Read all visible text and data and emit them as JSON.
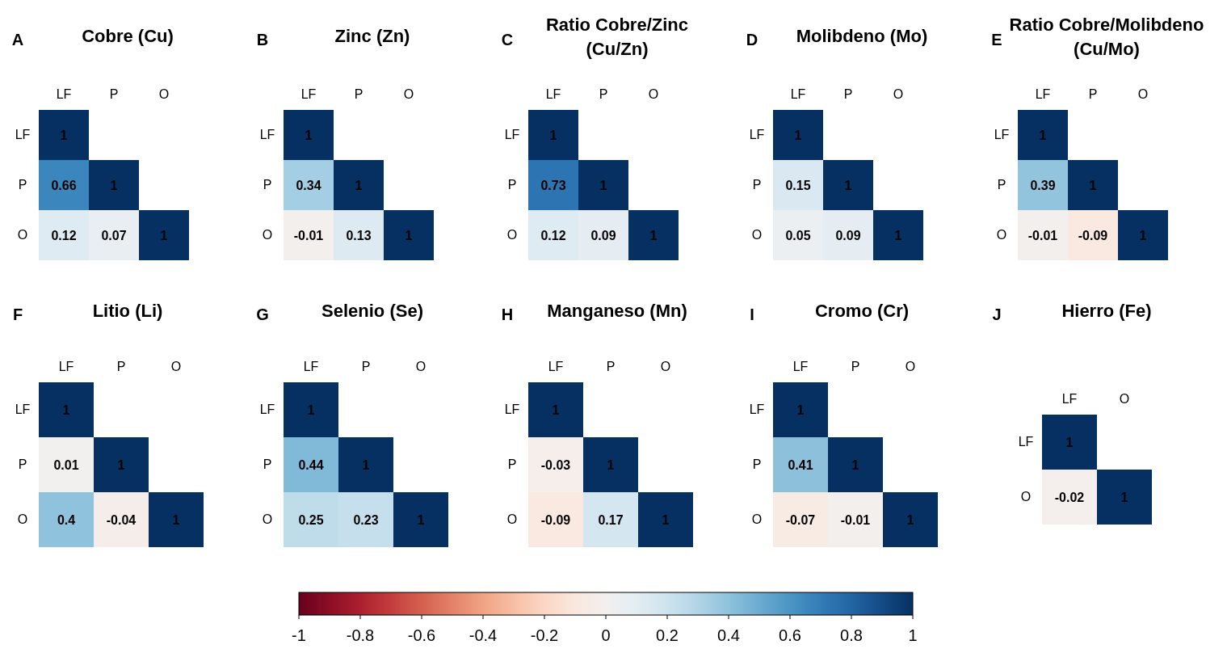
{
  "chart_data": [
    {
      "type": "heatmap",
      "title": "Cobre (Cu)",
      "annotations": [
        "A"
      ],
      "categories": [
        "LF",
        "P",
        "O"
      ],
      "y_categories": [
        "LF",
        "P",
        "O"
      ],
      "cells": [
        [
          1,
          null,
          null
        ],
        [
          0.66,
          1,
          null
        ],
        [
          0.12,
          0.07,
          1
        ]
      ],
      "clim": [
        -1,
        1
      ],
      "cticks": [
        -1,
        -0.8,
        -0.6,
        -0.4,
        -0.2,
        0,
        0.2,
        0.4,
        0.6,
        0.8,
        1
      ],
      "data_labels": true
    },
    {
      "type": "heatmap",
      "title": "Zinc (Zn)",
      "annotations": [
        "B"
      ],
      "categories": [
        "LF",
        "P",
        "O"
      ],
      "y_categories": [
        "LF",
        "P",
        "O"
      ],
      "cells": [
        [
          1,
          null,
          null
        ],
        [
          0.34,
          1,
          null
        ],
        [
          -0.01,
          0.13,
          1
        ]
      ],
      "data_labels": true
    },
    {
      "type": "heatmap",
      "title": "Ratio Cobre/Zinc (Cu/Zn)",
      "annotations": [
        "C"
      ],
      "categories": [
        "LF",
        "P",
        "O"
      ],
      "y_categories": [
        "LF",
        "P",
        "O"
      ],
      "cells": [
        [
          1,
          null,
          null
        ],
        [
          0.73,
          1,
          null
        ],
        [
          0.12,
          0.09,
          1
        ]
      ],
      "data_labels": true
    },
    {
      "type": "heatmap",
      "title": "Molibdeno (Mo)",
      "annotations": [
        "D"
      ],
      "categories": [
        "LF",
        "P",
        "O"
      ],
      "y_categories": [
        "LF",
        "P",
        "O"
      ],
      "cells": [
        [
          1,
          null,
          null
        ],
        [
          0.15,
          1,
          null
        ],
        [
          0.05,
          0.09,
          1
        ]
      ],
      "data_labels": true
    },
    {
      "type": "heatmap",
      "title": "Ratio Cobre/Molibdeno (Cu/Mo)",
      "annotations": [
        "E"
      ],
      "categories": [
        "LF",
        "P",
        "O"
      ],
      "y_categories": [
        "LF",
        "P",
        "O"
      ],
      "cells": [
        [
          1,
          null,
          null
        ],
        [
          0.39,
          1,
          null
        ],
        [
          -0.01,
          -0.09,
          1
        ]
      ],
      "data_labels": true
    },
    {
      "type": "heatmap",
      "title": "Litio (Li)",
      "annotations": [
        "F"
      ],
      "categories": [
        "LF",
        "P",
        "O"
      ],
      "y_categories": [
        "LF",
        "P",
        "O"
      ],
      "cells": [
        [
          1,
          null,
          null
        ],
        [
          0.01,
          1,
          null
        ],
        [
          0.4,
          -0.04,
          1
        ]
      ],
      "data_labels": true
    },
    {
      "type": "heatmap",
      "title": "Selenio (Se)",
      "annotations": [
        "G"
      ],
      "categories": [
        "LF",
        "P",
        "O"
      ],
      "y_categories": [
        "LF",
        "P",
        "O"
      ],
      "cells": [
        [
          1,
          null,
          null
        ],
        [
          0.44,
          1,
          null
        ],
        [
          0.25,
          0.23,
          1
        ]
      ],
      "data_labels": true
    },
    {
      "type": "heatmap",
      "title": "Manganeso (Mn)",
      "annotations": [
        "H"
      ],
      "categories": [
        "LF",
        "P",
        "O"
      ],
      "y_categories": [
        "LF",
        "P",
        "O"
      ],
      "cells": [
        [
          1,
          null,
          null
        ],
        [
          -0.03,
          1,
          null
        ],
        [
          -0.09,
          0.17,
          1
        ]
      ],
      "data_labels": true
    },
    {
      "type": "heatmap",
      "title": "Cromo (Cr)",
      "annotations": [
        "I"
      ],
      "categories": [
        "LF",
        "P",
        "O"
      ],
      "y_categories": [
        "LF",
        "P",
        "O"
      ],
      "cells": [
        [
          1,
          null,
          null
        ],
        [
          0.41,
          1,
          null
        ],
        [
          -0.07,
          -0.01,
          1
        ]
      ],
      "data_labels": true
    },
    {
      "type": "heatmap",
      "title": "Hierro (Fe)",
      "annotations": [
        "J"
      ],
      "categories": [
        "LF",
        "O"
      ],
      "y_categories": [
        "LF",
        "O"
      ],
      "cells": [
        [
          1,
          null
        ],
        [
          -0.02,
          1
        ]
      ],
      "data_labels": true
    }
  ]
}
